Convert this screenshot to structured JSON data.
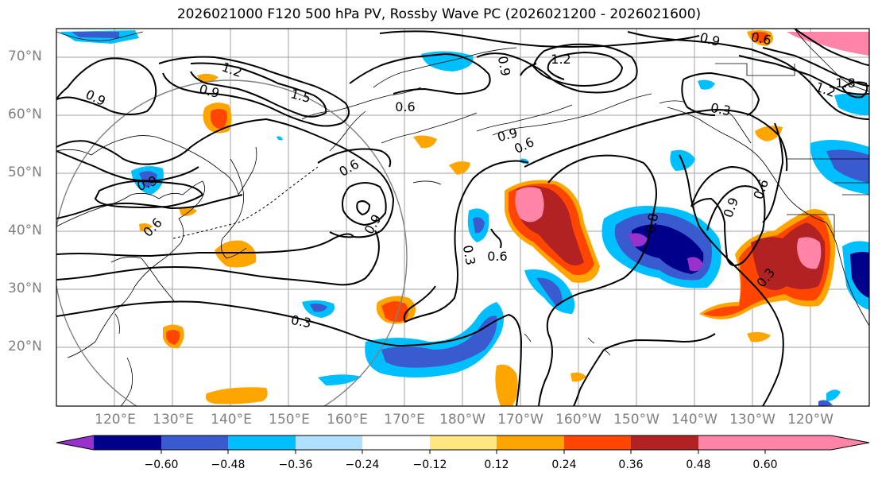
{
  "title": "2026021000 F120 500 hPa PV, Rossby Wave PC (2026021200 - 2026021600)",
  "lat_labels": [
    "70°N",
    "60°N",
    "50°N",
    "40°N",
    "30°N",
    "20°N"
  ],
  "lon_labels": [
    "120°E",
    "130°E",
    "140°E",
    "150°E",
    "160°E",
    "170°E",
    "180°W",
    "170°W",
    "160°W",
    "150°W",
    "140°W",
    "130°W",
    "120°W"
  ],
  "contour_labels": {
    "c09_nw": "0.9",
    "c12_nw": "1.2",
    "c09_nw2": "0.9",
    "c15": "1.5",
    "c06_kam": "0.6",
    "c09_jap": "0.9",
    "c06_jap": "0.6",
    "c09_n": "0.9",
    "c06_n": "0.6",
    "c12_n": "1.2",
    "c09_top": "0.9",
    "c09_top2": "0.9",
    "c06_ne": "0.6",
    "c03_ne": "0.3",
    "c12_ne": "1.2",
    "c18_ne": "1.8",
    "c06_mid": "0.6",
    "c03_mid": "0.3",
    "c03_low": "0.3",
    "c09_low": "0.9",
    "c06_low": "0.6",
    "c03_e": "0.3",
    "c09_e": "0.9",
    "c06_e": "0.6",
    "c08_e": "0.8",
    "c03_se": "0.3"
  },
  "colorbar": {
    "ticks": [
      "−0.60",
      "−0.48",
      "−0.36",
      "−0.24",
      "−0.12",
      "0.12",
      "0.24",
      "0.36",
      "0.48",
      "0.60"
    ],
    "colors": [
      "#9932cc",
      "#00008b",
      "#3a5bd0",
      "#00bfff",
      "#b0e0ff",
      "#ffffff",
      "#ffe680",
      "#ffa500",
      "#ff4500",
      "#b22222",
      "#ff85a8"
    ]
  },
  "legend_colors": {
    "neg_060": "#9932cc",
    "neg_048": "#00008b",
    "neg_036": "#3a5bd0",
    "neg_024": "#00bfff",
    "neg_012": "#b0e0ff",
    "pos_012": "#ffe680",
    "pos_024": "#ffa500",
    "pos_036": "#ff4500",
    "pos_048": "#b22222",
    "pos_060": "#ff85a8"
  }
}
